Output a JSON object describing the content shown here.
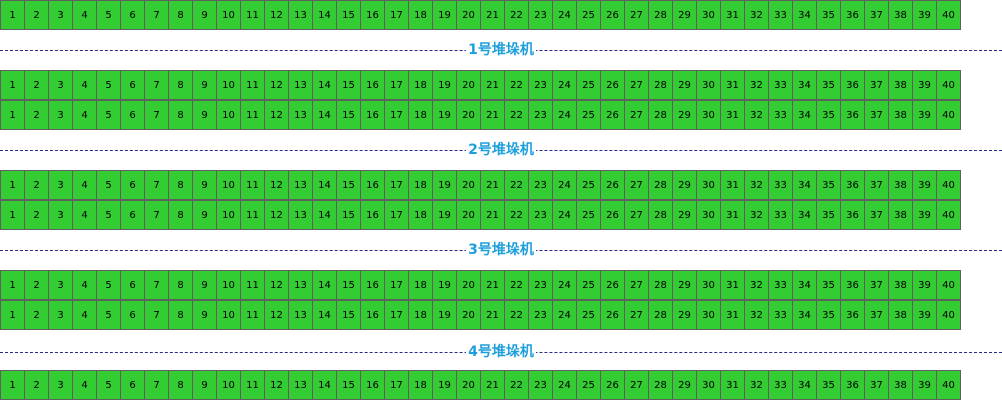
{
  "cell_color": "#33cc33",
  "cell_border_color": "#5f5f5f",
  "divider_line_color": "#2a2a8a",
  "label_color": "#1e9fdc",
  "cell_numbers": [
    "1",
    "2",
    "3",
    "4",
    "5",
    "6",
    "7",
    "8",
    "9",
    "10",
    "11",
    "12",
    "13",
    "14",
    "15",
    "16",
    "17",
    "18",
    "19",
    "20",
    "21",
    "22",
    "23",
    "24",
    "25",
    "26",
    "27",
    "28",
    "29",
    "30",
    "31",
    "32",
    "33",
    "34",
    "35",
    "36",
    "37",
    "38",
    "39",
    "40"
  ],
  "stackers": [
    {
      "label": "1号堆垛机"
    },
    {
      "label": "2号堆垛机"
    },
    {
      "label": "3号堆垛机"
    },
    {
      "label": "4号堆垛机"
    }
  ]
}
